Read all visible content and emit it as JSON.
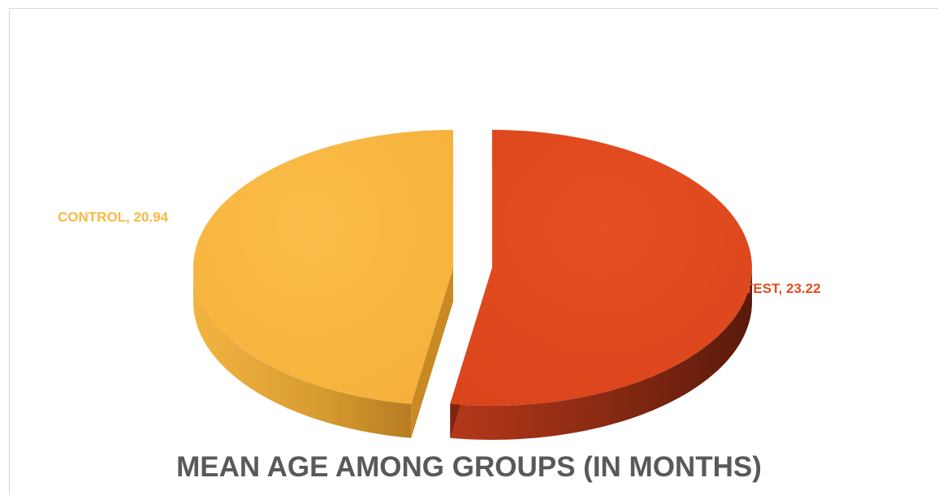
{
  "chart_data": {
    "type": "pie",
    "title": "MEAN AGE AMONG GROUPS (IN MONTHS)",
    "slices": [
      {
        "label": "CONTROL",
        "value": 20.94,
        "color": "#F8B843"
      },
      {
        "label": "TEST",
        "value": 23.22,
        "color": "#E34D21"
      }
    ],
    "data_labels": [
      "CONTROL, 20.94",
      "TEST, 23.22"
    ],
    "style": "3d-exploded",
    "legend": "none"
  }
}
